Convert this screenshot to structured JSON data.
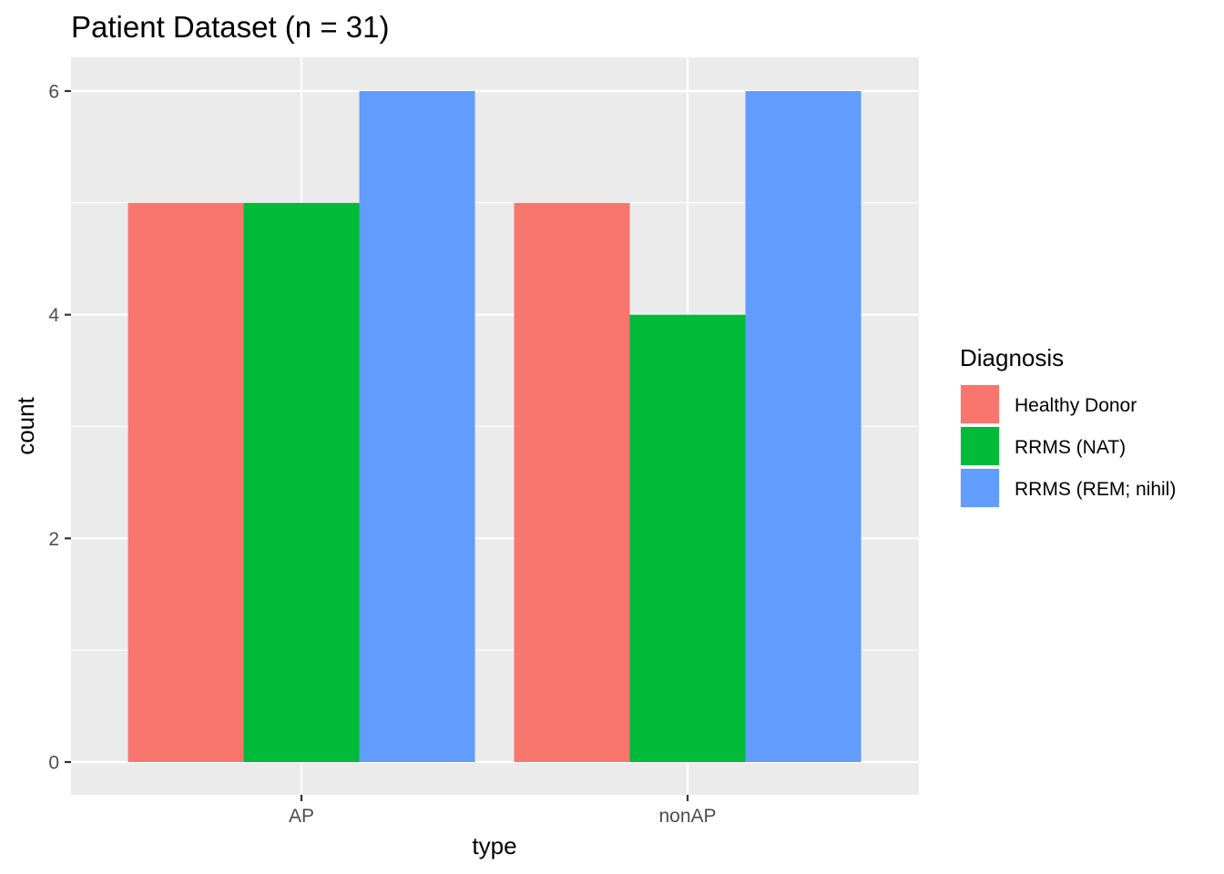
{
  "chart_data": {
    "type": "bar",
    "title": "Patient Dataset (n = 31)",
    "xlabel": "type",
    "ylabel": "count",
    "categories": [
      "AP",
      "nonAP"
    ],
    "series": [
      {
        "name": "Healthy Donor",
        "values": [
          5,
          5
        ],
        "color": "#F8766D"
      },
      {
        "name": "RRMS (NAT)",
        "values": [
          5,
          4
        ],
        "color": "#00BA38"
      },
      {
        "name": "RRMS (REM; nihil)",
        "values": [
          6,
          6
        ],
        "color": "#619CFF"
      }
    ],
    "ylim": [
      0,
      6
    ],
    "yticks": [
      0,
      2,
      4,
      6
    ],
    "ytick_labels": [
      "0",
      "2",
      "4",
      "6"
    ],
    "grid": true,
    "legend": {
      "title": "Diagnosis",
      "position": "right"
    },
    "panel_background": "#EBEBEB",
    "grid_color": "#FFFFFF"
  }
}
